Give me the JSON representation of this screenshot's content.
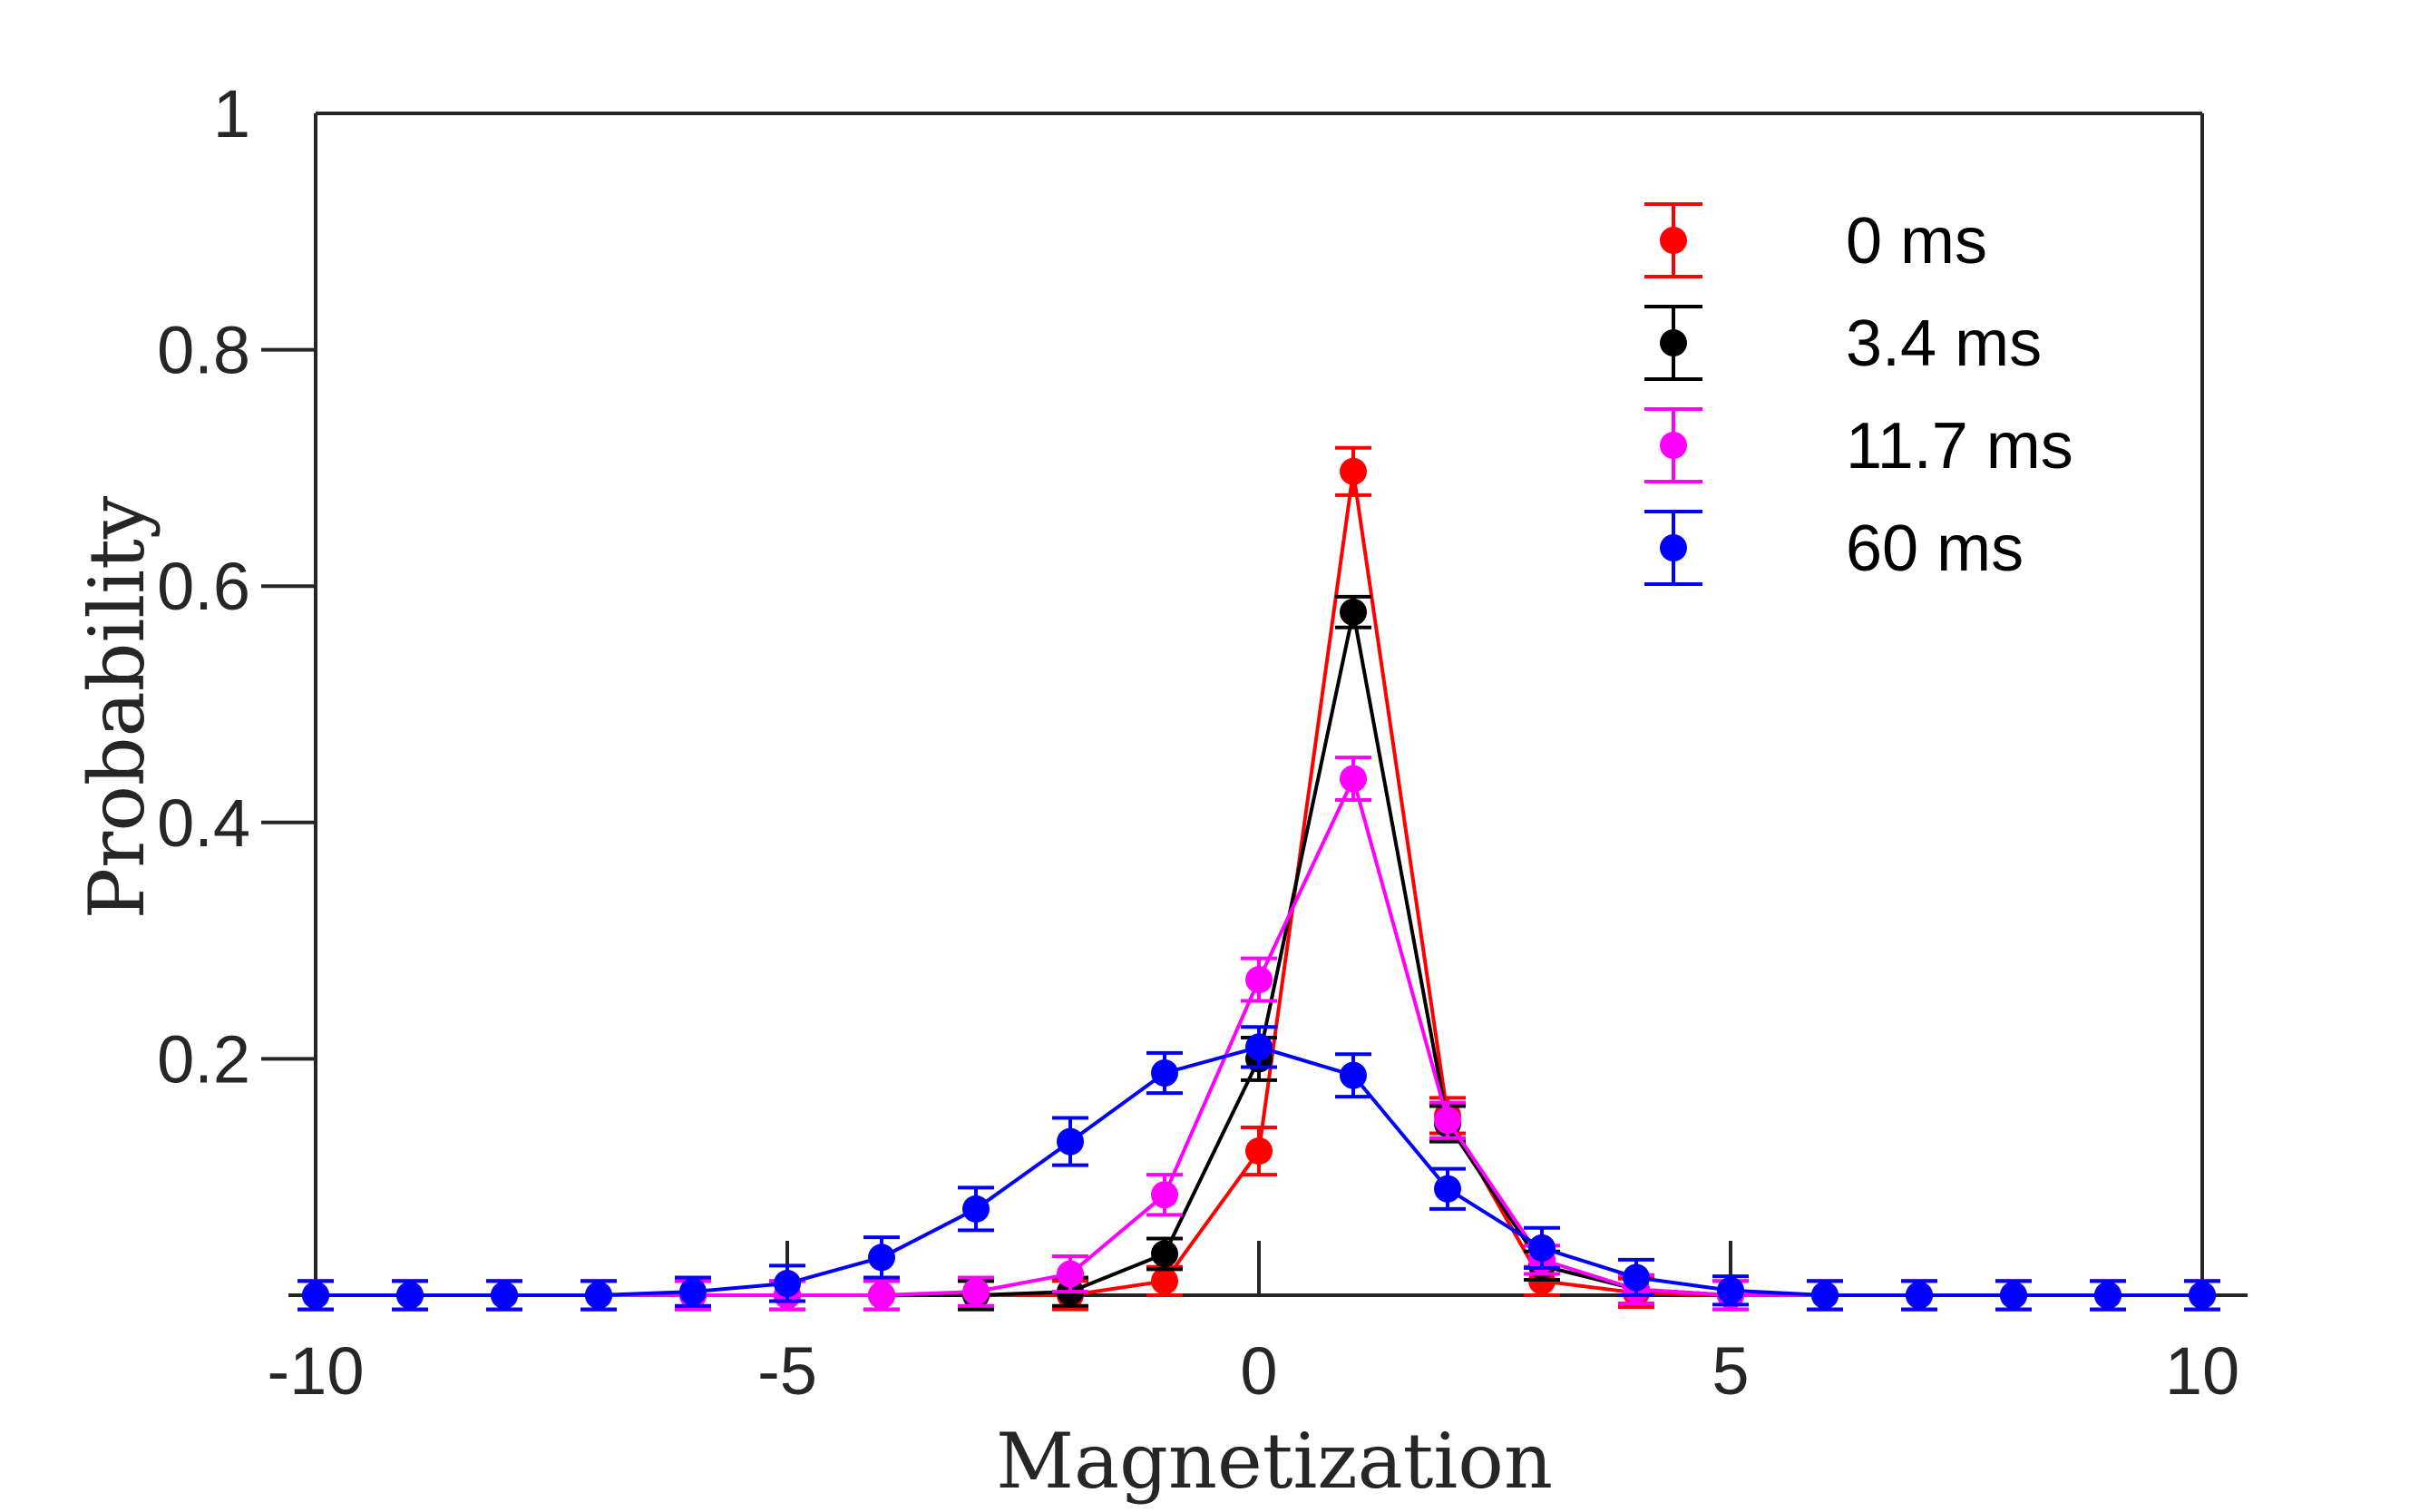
{
  "chart_data": {
    "type": "scatter",
    "title": "",
    "xlabel": "Magnetization",
    "ylabel": "Probability",
    "xlim": [
      -10,
      10
    ],
    "ylim": [
      0,
      1
    ],
    "x_ticks": [
      -10,
      -5,
      0,
      5,
      10
    ],
    "x_tick_labels": [
      "-10",
      "-5",
      "0",
      "5",
      "10"
    ],
    "y_ticks": [
      0.2,
      0.4,
      0.6,
      0.8,
      1
    ],
    "y_tick_labels": [
      "0.2",
      "0.4",
      "0.6",
      "0.8",
      "1"
    ],
    "grid": false,
    "legend_position": "top-right",
    "x": [
      -10,
      -9,
      -8,
      -7,
      -6,
      -5,
      -4,
      -3,
      -2,
      -1,
      0,
      1,
      2,
      3,
      4,
      5,
      6,
      7,
      8,
      9,
      10
    ],
    "series": [
      {
        "name": "0 ms",
        "color": "#ff0000",
        "values": [
          0,
          0,
          0,
          0,
          0,
          0,
          0,
          0,
          0,
          0.012,
          0.122,
          0.697,
          0.152,
          0.012,
          0.002,
          0,
          0,
          0,
          0,
          0,
          0
        ],
        "errors": [
          0.012,
          0.012,
          0.012,
          0.012,
          0.012,
          0.012,
          0.012,
          0.012,
          0.012,
          0.012,
          0.02,
          0.02,
          0.015,
          0.012,
          0.012,
          0.012,
          0.012,
          0.012,
          0.012,
          0.012,
          0.012
        ]
      },
      {
        "name": "3.4 ms",
        "color": "#000000",
        "values": [
          0,
          0,
          0,
          0,
          0,
          0,
          0,
          0,
          0.003,
          0.035,
          0.2,
          0.578,
          0.145,
          0.025,
          0.005,
          0,
          0,
          0,
          0,
          0,
          0
        ],
        "errors": [
          0.012,
          0.012,
          0.012,
          0.012,
          0.012,
          0.012,
          0.012,
          0.012,
          0.012,
          0.013,
          0.018,
          0.013,
          0.015,
          0.012,
          0.012,
          0.012,
          0.012,
          0.012,
          0.012,
          0.012,
          0.012
        ]
      },
      {
        "name": "11.7 ms",
        "color": "#ff00ff",
        "values": [
          0,
          0,
          0,
          0,
          0,
          0,
          0,
          0.003,
          0.018,
          0.085,
          0.267,
          0.437,
          0.148,
          0.03,
          0.005,
          0,
          0,
          0,
          0,
          0,
          0
        ],
        "errors": [
          0.012,
          0.012,
          0.012,
          0.012,
          0.012,
          0.012,
          0.012,
          0.012,
          0.015,
          0.017,
          0.018,
          0.018,
          0.015,
          0.012,
          0.012,
          0.012,
          0.012,
          0.012,
          0.012,
          0.012,
          0.012
        ]
      },
      {
        "name": "60 ms",
        "color": "#0000ff",
        "values": [
          0,
          0,
          0,
          0,
          0.003,
          0.01,
          0.032,
          0.073,
          0.13,
          0.188,
          0.21,
          0.186,
          0.09,
          0.04,
          0.015,
          0.004,
          0,
          0,
          0,
          0,
          0
        ],
        "errors": [
          0.012,
          0.012,
          0.012,
          0.012,
          0.012,
          0.015,
          0.017,
          0.018,
          0.02,
          0.017,
          0.017,
          0.018,
          0.017,
          0.017,
          0.015,
          0.012,
          0.012,
          0.012,
          0.012,
          0.012,
          0.012
        ]
      }
    ]
  }
}
